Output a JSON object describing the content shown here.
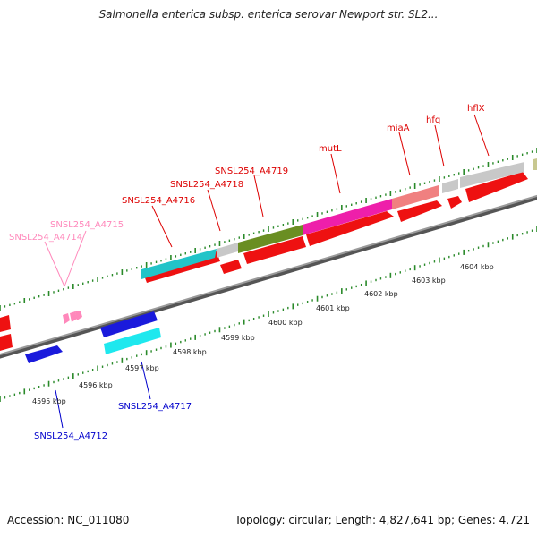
{
  "title": "Salmonella enterica subsp. enterica serovar Newport str. SL2...",
  "footer": {
    "accession": "Accession: NC_011080",
    "summary": "Topology: circular; Length: 4,827,641 bp; Genes: 4,721"
  },
  "ruler_labels": [
    "4595 kbp",
    "4596 kbp",
    "4597 kbp",
    "4598 kbp",
    "4599 kbp",
    "4600 kbp",
    "4601 kbp",
    "4602 kbp",
    "4603 kbp",
    "4604 kbp"
  ],
  "gene_labels": {
    "forward": [
      "SNSL254_A4714",
      "SNSL254_A4715"
    ],
    "reverse": [
      "SNSL254_A4716",
      "SNSL254_A4718",
      "SNSL254_A4719",
      "mutL",
      "miaA",
      "hfq",
      "hflX"
    ],
    "minus": [
      "SNSL254_A4712",
      "SNSL254_A4717"
    ]
  },
  "colors": {
    "backbone": "#888888",
    "cds_red": "#ee1111",
    "teal": "#22c4c8",
    "olive": "#6a8e22",
    "magenta": "#ee1faa",
    "salmon": "#f08080",
    "grey": "#c8c8c8",
    "blue": "#1a1adc",
    "cyan": "#1ee8ee",
    "pink": "#ff88bb",
    "tick": "#2a8a2a",
    "label_red": "#dd0000",
    "label_pink": "#ff88bb",
    "label_blue": "#0000cc"
  }
}
